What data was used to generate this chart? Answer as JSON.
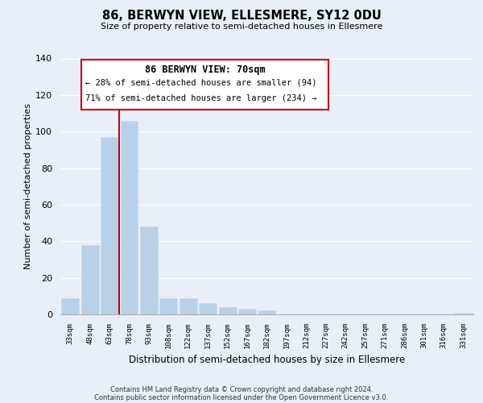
{
  "title": "86, BERWYN VIEW, ELLESMERE, SY12 0DU",
  "subtitle": "Size of property relative to semi-detached houses in Ellesmere",
  "xlabel": "Distribution of semi-detached houses by size in Ellesmere",
  "ylabel": "Number of semi-detached properties",
  "categories": [
    "33sqm",
    "48sqm",
    "63sqm",
    "78sqm",
    "93sqm",
    "108sqm",
    "122sqm",
    "137sqm",
    "152sqm",
    "167sqm",
    "182sqm",
    "197sqm",
    "212sqm",
    "227sqm",
    "242sqm",
    "257sqm",
    "271sqm",
    "286sqm",
    "301sqm",
    "316sqm",
    "331sqm"
  ],
  "values": [
    9,
    38,
    97,
    106,
    48,
    9,
    9,
    6,
    4,
    3,
    2,
    0,
    0,
    0,
    0,
    0,
    0,
    0,
    0,
    0,
    1
  ],
  "bar_color": "#b8d0e8",
  "bar_edge_color": "#c8ddf0",
  "marker_label": "86 BERWYN VIEW: 70sqm",
  "pct_smaller": 28,
  "pct_smaller_count": 94,
  "pct_larger": 71,
  "pct_larger_count": 234,
  "annotation_box_color": "#ffffff",
  "annotation_box_edge": "#cc0000",
  "marker_line_color": "#cc0000",
  "ylim": [
    0,
    140
  ],
  "background_color": "#e8eff8",
  "plot_bg_color": "#e8eff8",
  "grid_color": "#ffffff",
  "footer_line1": "Contains HM Land Registry data © Crown copyright and database right 2024.",
  "footer_line2": "Contains public sector information licensed under the Open Government Licence v3.0."
}
